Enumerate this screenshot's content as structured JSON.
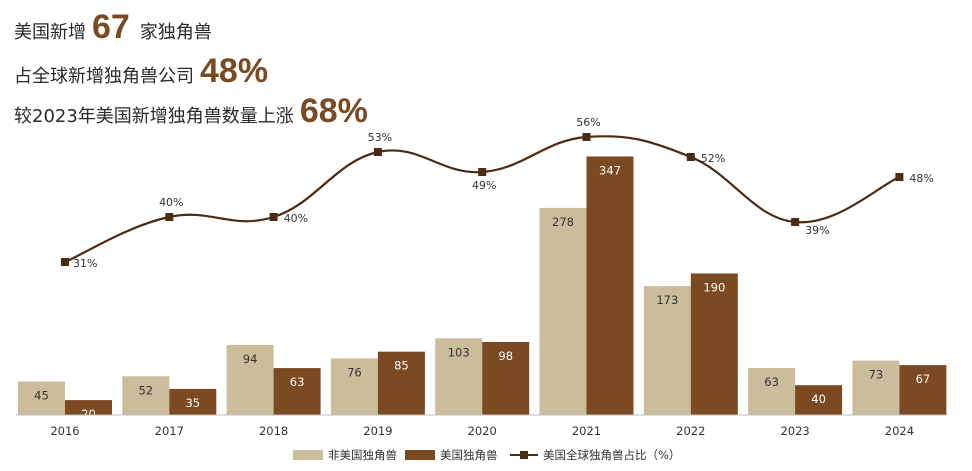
{
  "headlines": {
    "line1": {
      "prefix": "美国新增",
      "value": "67",
      "suffix": "家独角兽"
    },
    "line2": {
      "prefix": "占全球新增独角兽公司",
      "value": "48%"
    },
    "line3": {
      "prefix": "较2023年美国新增独角兽数量上涨",
      "value": "68%"
    }
  },
  "colors": {
    "non_us": "#cbbd9c",
    "us": "#7b4a22",
    "line": "#4a2b14",
    "axis": "#bfbfbf"
  },
  "chart_data": {
    "type": "bar",
    "categories": [
      "2016",
      "2017",
      "2018",
      "2019",
      "2020",
      "2021",
      "2022",
      "2023",
      "2024"
    ],
    "series": [
      {
        "name": "非美国独角兽",
        "type": "bar",
        "values": [
          45,
          52,
          94,
          76,
          103,
          278,
          173,
          63,
          73
        ]
      },
      {
        "name": "美国独角兽",
        "type": "bar",
        "values": [
          20,
          35,
          63,
          85,
          98,
          347,
          190,
          40,
          67
        ]
      },
      {
        "name": "美国全球独角兽占比（%）",
        "type": "line",
        "values": [
          31,
          40,
          40,
          53,
          49,
          56,
          52,
          39,
          48
        ],
        "unit": "%"
      }
    ],
    "legend_position": "bottom",
    "grid": false,
    "data_labels": true
  }
}
